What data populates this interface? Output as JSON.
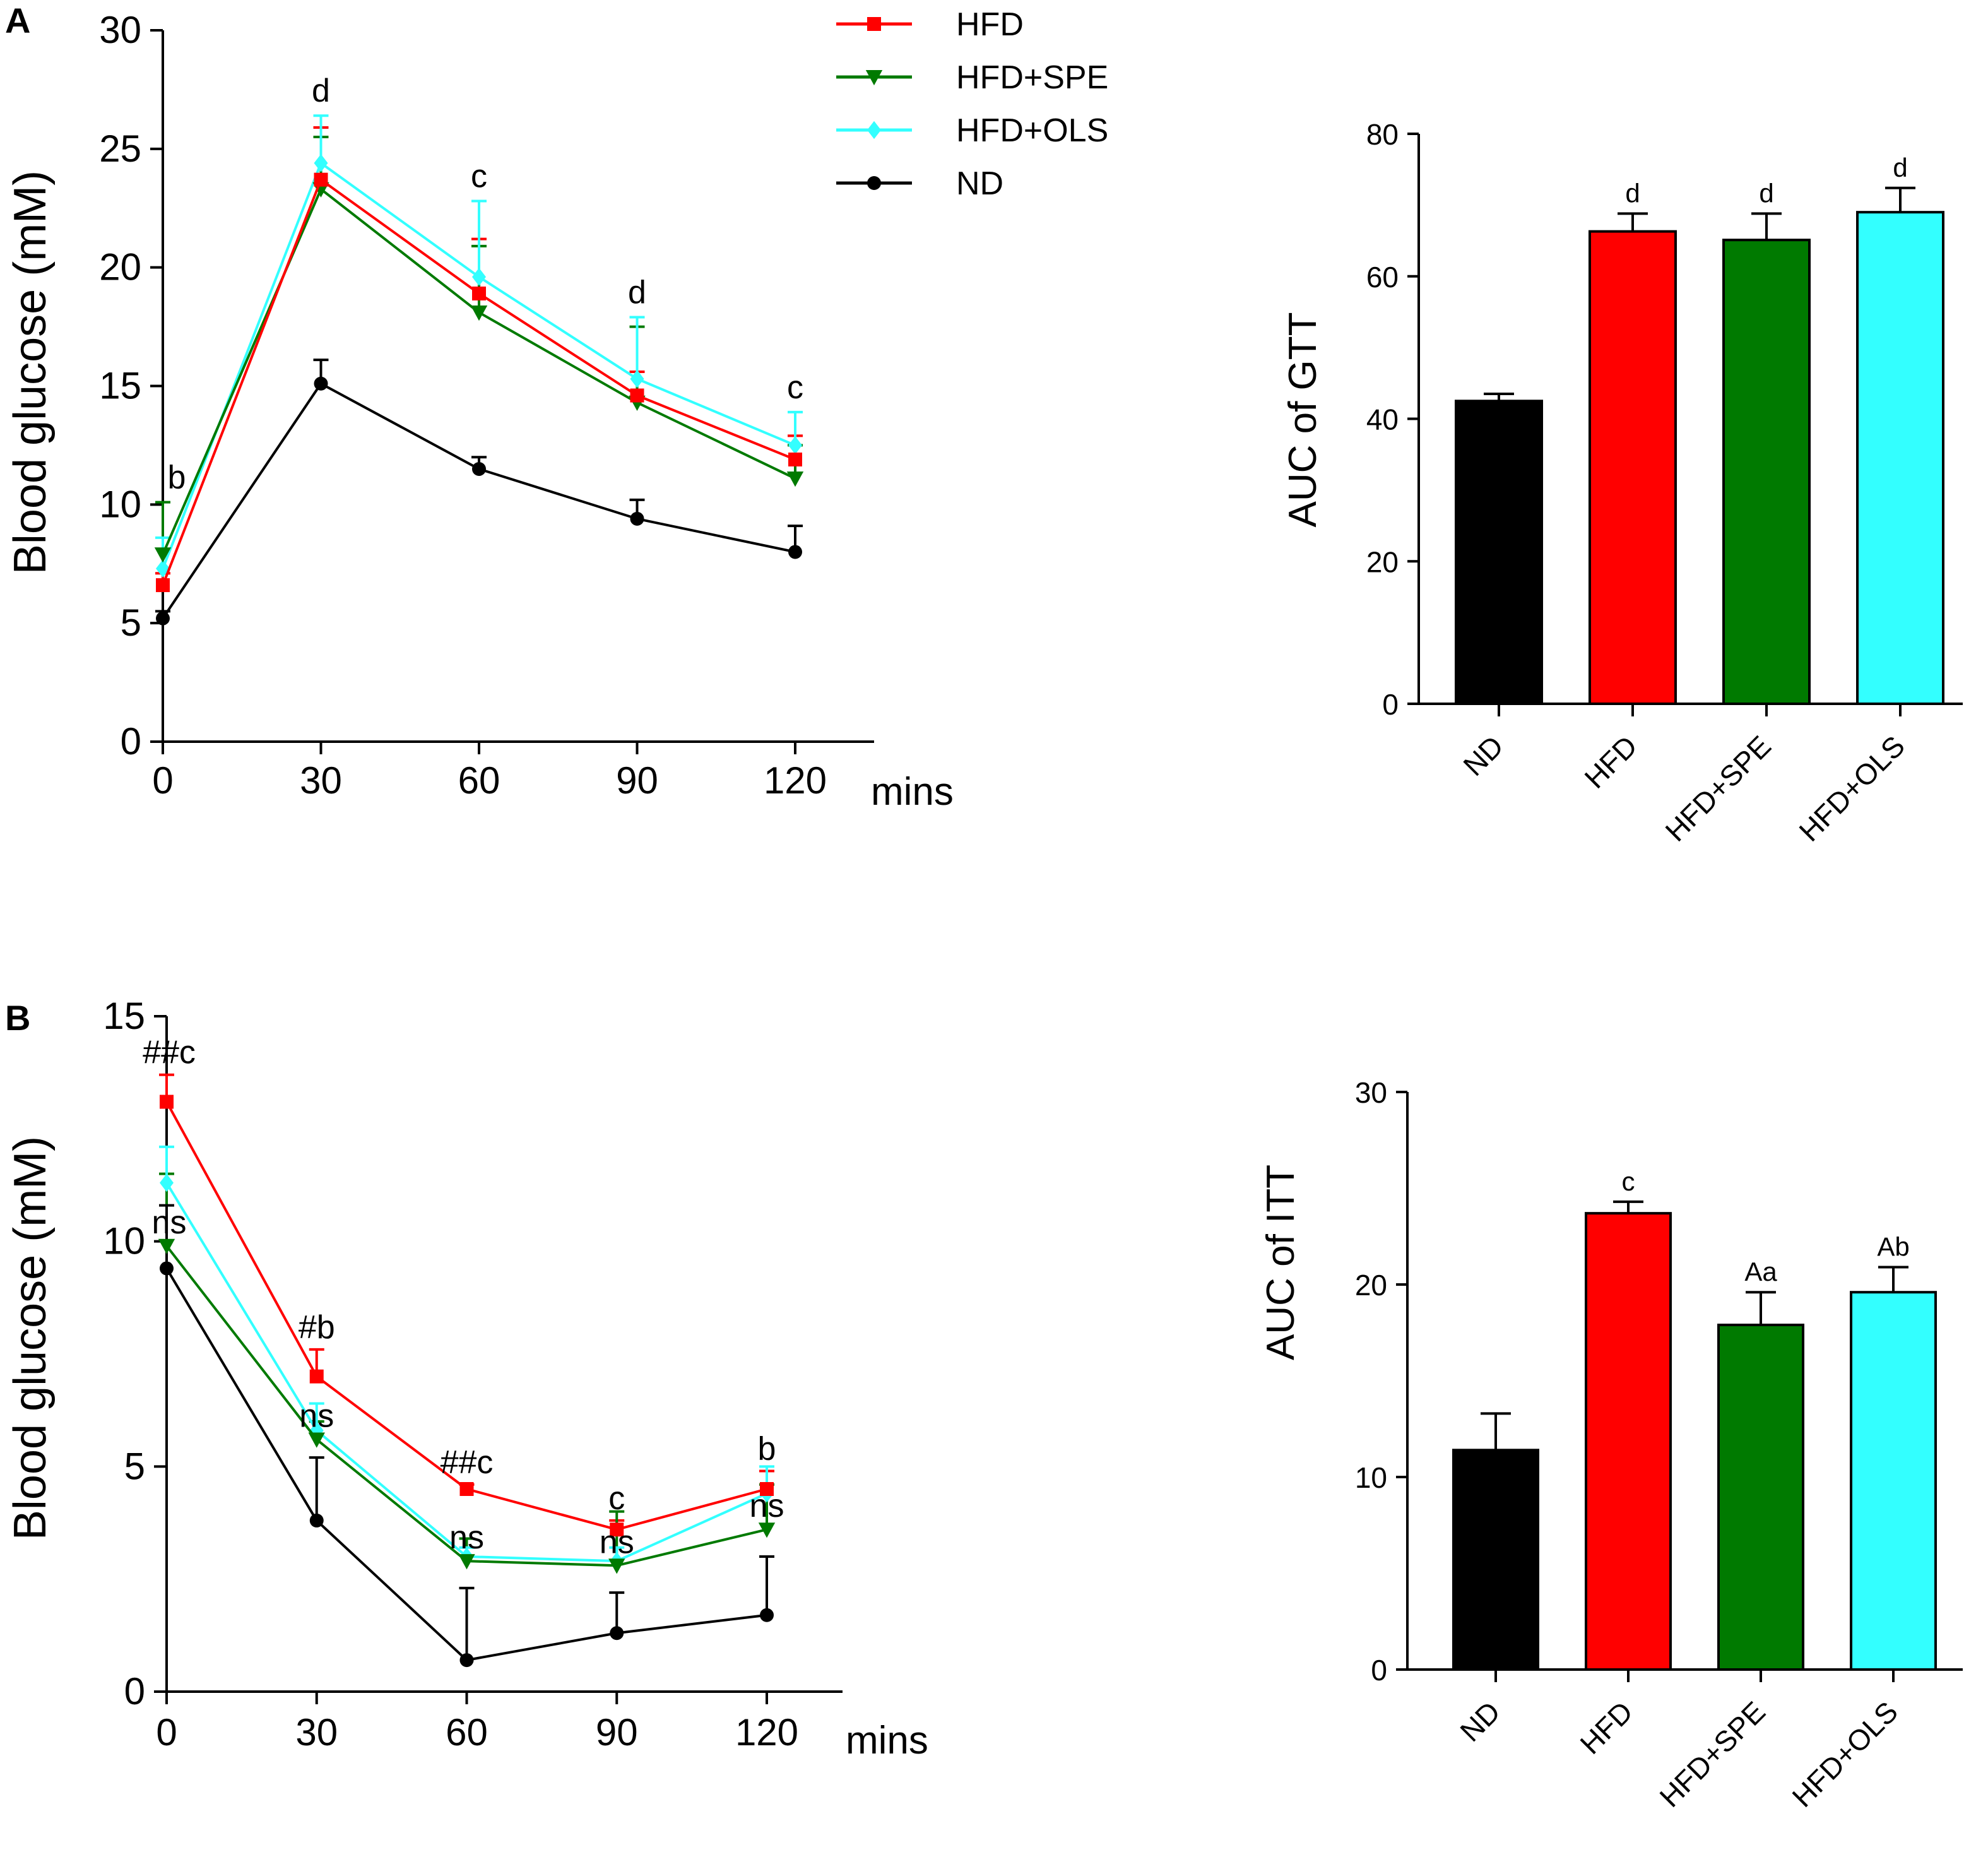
{
  "colors": {
    "HFD": "#ff0000",
    "HFD+SPE": "#007a00",
    "HFD+OLS": "#33ffff",
    "ND": "#000000"
  },
  "chart_data": [
    {
      "id": "A-line",
      "type": "line",
      "panel": "A",
      "xlabel": "",
      "x_unit": "mins",
      "ylabel": "Blood glucose (mM)",
      "x": [
        0,
        30,
        60,
        90,
        120
      ],
      "x_ticks": [
        "0",
        "30",
        "60",
        "90",
        "120"
      ],
      "ylim": [
        0,
        30
      ],
      "y_ticks": [
        "0",
        "5",
        "10",
        "15",
        "20",
        "25",
        "30"
      ],
      "legend": [
        "HFD",
        "HFD+SPE",
        "HFD+OLS",
        "ND"
      ],
      "series": [
        {
          "name": "HFD",
          "values": [
            6.6,
            23.7,
            18.9,
            14.6,
            11.9
          ],
          "errors": [
            0.5,
            2.2,
            2.3,
            1.0,
            1.0
          ]
        },
        {
          "name": "HFD+SPE",
          "values": [
            7.9,
            23.3,
            18.1,
            14.3,
            11.1
          ],
          "errors": [
            2.2,
            2.2,
            2.8,
            3.2,
            1.4
          ]
        },
        {
          "name": "HFD+OLS",
          "values": [
            7.3,
            24.4,
            19.6,
            15.3,
            12.5
          ],
          "errors": [
            1.3,
            2.0,
            3.2,
            2.6,
            1.4
          ]
        },
        {
          "name": "ND",
          "values": [
            5.2,
            15.1,
            11.5,
            9.4,
            8.0
          ],
          "errors": [
            0.3,
            1.0,
            0.5,
            0.8,
            1.1
          ]
        }
      ],
      "annotations": [
        {
          "x": 0,
          "text": "b"
        },
        {
          "x": 30,
          "text": "d"
        },
        {
          "x": 60,
          "text": "c"
        },
        {
          "x": 90,
          "text": "d"
        },
        {
          "x": 120,
          "text": "c"
        }
      ]
    },
    {
      "id": "A-bar",
      "type": "bar",
      "ylabel": "AUC of GTT",
      "categories": [
        "ND",
        "HFD",
        "HFD+SPE",
        "HFD+OLS"
      ],
      "values": [
        42.5,
        66.3,
        65.1,
        69.0
      ],
      "errors": [
        1.0,
        2.5,
        3.7,
        3.4
      ],
      "labels": [
        "",
        "d",
        "d",
        "d"
      ],
      "ylim": [
        0,
        80
      ],
      "y_ticks": [
        "0",
        "20",
        "40",
        "60",
        "80"
      ]
    },
    {
      "id": "B-line",
      "type": "line",
      "panel": "B",
      "xlabel": "",
      "x_unit": "mins",
      "ylabel": "Blood glucose (mM)",
      "x": [
        0,
        30,
        60,
        90,
        120
      ],
      "x_ticks": [
        "0",
        "30",
        "60",
        "90",
        "120"
      ],
      "ylim": [
        0,
        15
      ],
      "y_ticks": [
        "0",
        "5",
        "10",
        "15"
      ],
      "series": [
        {
          "name": "HFD",
          "values": [
            13.1,
            7.0,
            4.5,
            3.6,
            4.5
          ],
          "errors": [
            0.6,
            0.6,
            0.1,
            0.2,
            0.4
          ]
        },
        {
          "name": "HFD+SPE",
          "values": [
            9.9,
            5.6,
            2.9,
            2.8,
            3.6
          ],
          "errors": [
            1.6,
            0.4,
            0.5,
            1.2,
            1.0
          ]
        },
        {
          "name": "HFD+OLS",
          "values": [
            11.3,
            5.8,
            3.0,
            2.9,
            4.4
          ],
          "errors": [
            0.8,
            0.6,
            0.2,
            0.3,
            0.6
          ]
        },
        {
          "name": "ND",
          "values": [
            9.4,
            3.8,
            0.7,
            1.3,
            1.7
          ],
          "errors": [
            1.4,
            1.4,
            1.6,
            0.9,
            1.3
          ]
        }
      ],
      "annotations": [
        {
          "x": 0,
          "text": "##c",
          "row": "top"
        },
        {
          "x": 0,
          "text": "ns",
          "row": "low"
        },
        {
          "x": 30,
          "text": "#b",
          "row": "top"
        },
        {
          "x": 30,
          "text": "ns",
          "row": "low"
        },
        {
          "x": 60,
          "text": "##c",
          "row": "top"
        },
        {
          "x": 60,
          "text": "ns",
          "row": "low"
        },
        {
          "x": 90,
          "text": "c",
          "row": "top"
        },
        {
          "x": 90,
          "text": "ns",
          "row": "low"
        },
        {
          "x": 120,
          "text": "b",
          "row": "top"
        },
        {
          "x": 120,
          "text": "ns",
          "row": "low"
        }
      ]
    },
    {
      "id": "B-bar",
      "type": "bar",
      "ylabel": "AUC of ITT",
      "categories": [
        "ND",
        "HFD",
        "HFD+SPE",
        "HFD+OLS"
      ],
      "values": [
        11.4,
        23.7,
        17.9,
        19.6
      ],
      "errors": [
        1.9,
        0.6,
        1.7,
        1.3
      ],
      "labels": [
        "",
        "c",
        "Aa",
        "Ab"
      ],
      "ylim": [
        0,
        30
      ],
      "y_ticks": [
        "0",
        "10",
        "20",
        "30"
      ]
    }
  ]
}
